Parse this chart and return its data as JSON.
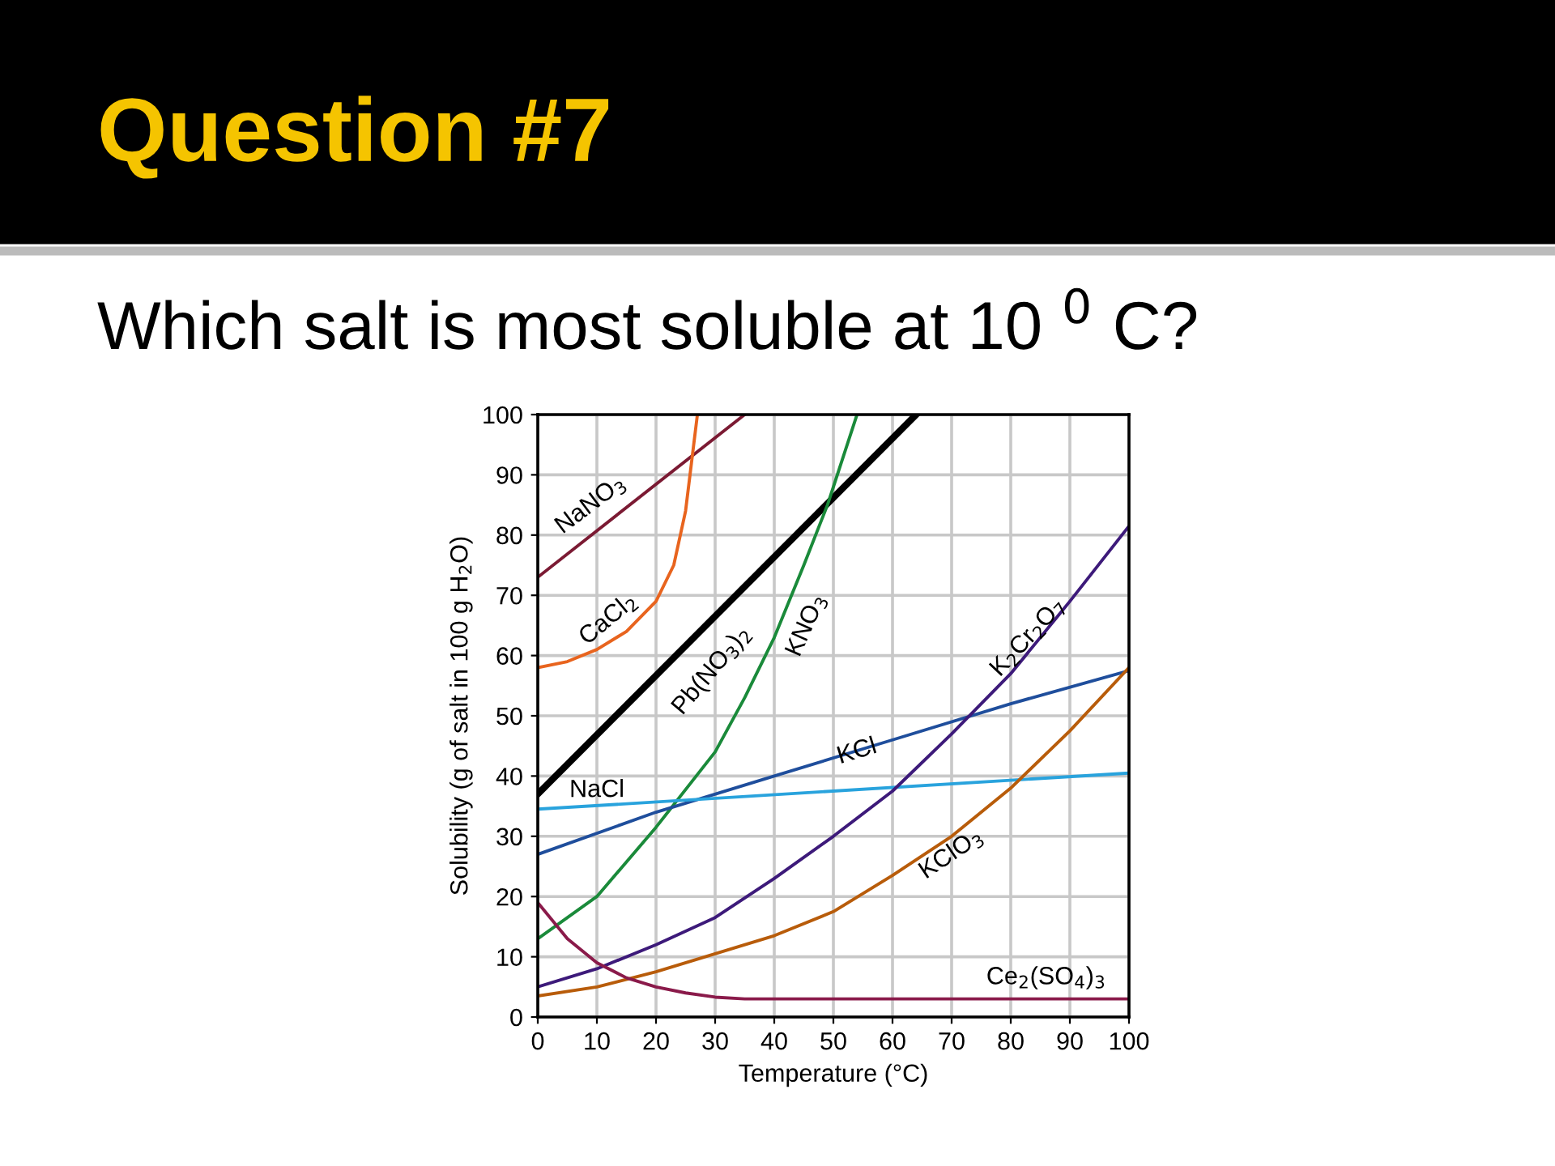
{
  "chart_data": {
    "type": "line",
    "title": "Question #7",
    "subtitle": "Which salt is most soluble at 10 $^{0}$ C?",
    "xlabel": "Temperature (°C)",
    "ylabel": "Solubility (g of salt in 100 g H$_{2}$O)",
    "xlim": [
      0,
      100
    ],
    "ylim": [
      0,
      100
    ],
    "xticks": [
      0,
      10,
      20,
      30,
      40,
      50,
      60,
      70,
      80,
      90,
      100
    ],
    "yticks": [
      0,
      10,
      20,
      30,
      40,
      50,
      60,
      70,
      80,
      90,
      100
    ],
    "grid": true,
    "legend": false,
    "marker": "none",
    "line_style": "solid",
    "series": [
      {
        "name": "NaNO$_{3}$",
        "color": "#7b1a33",
        "x": [
          0,
          35
        ],
        "values": [
          73,
          100
        ]
      },
      {
        "name": "CaCl$_{2}$",
        "color": "#e8641e",
        "x": [
          0,
          5,
          10,
          15,
          20,
          23,
          25,
          26,
          27
        ],
        "values": [
          58,
          59,
          61,
          64,
          69,
          75,
          84,
          92,
          100
        ]
      },
      {
        "name": "Pb(NO$_{3}$)$_{2}$",
        "color": "#000000",
        "x": [
          0,
          64
        ],
        "values": [
          37,
          100
        ]
      },
      {
        "name": "KNO$_{3}$",
        "color": "#1a8a3a",
        "x": [
          0,
          10,
          20,
          30,
          35,
          40,
          45,
          49,
          54
        ],
        "values": [
          13,
          20,
          31.5,
          44,
          53,
          63,
          75,
          85,
          100
        ]
      },
      {
        "name": "KCl",
        "color": "#1f4e9c",
        "x": [
          0,
          20,
          40,
          60,
          80,
          100
        ],
        "values": [
          27,
          34,
          40,
          46,
          52,
          57.5
        ]
      },
      {
        "name": "NaCl",
        "color": "#29a3dd",
        "x": [
          0,
          100
        ],
        "values": [
          34.5,
          40.5
        ]
      },
      {
        "name": "K$_{2}$Cr$_{2}$O$_{7}$",
        "color": "#3d1a7a",
        "x": [
          0,
          10,
          20,
          30,
          40,
          50,
          60,
          70,
          80,
          90,
          100
        ],
        "values": [
          5,
          8,
          12,
          16.5,
          23,
          30,
          37.5,
          47,
          57,
          69,
          81.5
        ]
      },
      {
        "name": "KClO$_{3}$",
        "color": "#b85c0a",
        "x": [
          0,
          10,
          20,
          30,
          40,
          50,
          60,
          70,
          80,
          90,
          100
        ],
        "values": [
          3.5,
          5,
          7.5,
          10.5,
          13.5,
          17.5,
          23.5,
          30,
          38,
          47.5,
          58
        ]
      },
      {
        "name": "Ce$_{2}$(SO$_{4}$)$_{3}$",
        "color": "#8a1a4a",
        "x": [
          0,
          5,
          10,
          15,
          20,
          25,
          30,
          35,
          100
        ],
        "values": [
          19,
          13,
          9,
          6.5,
          5,
          4,
          3.3,
          3,
          3
        ]
      }
    ]
  }
}
